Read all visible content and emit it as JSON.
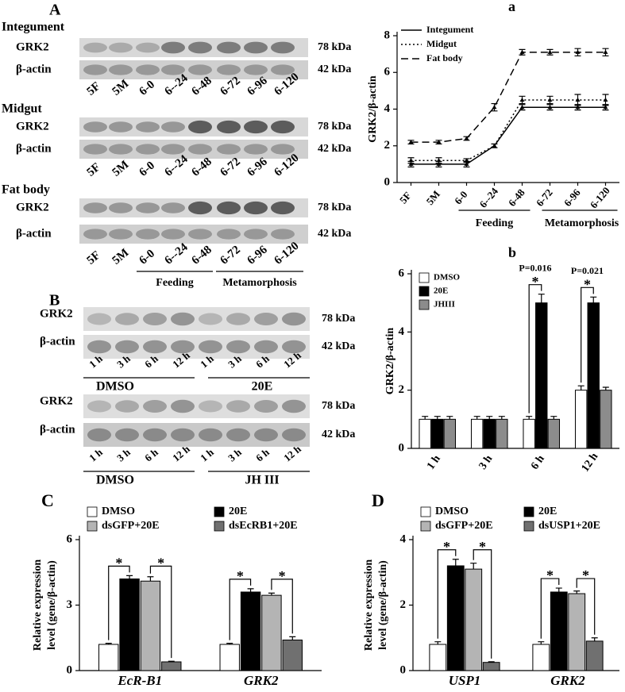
{
  "blots": {
    "A": {
      "label": "A",
      "groups": [
        {
          "tissue": "Integument",
          "rows": [
            "GRK2",
            "β-actin"
          ],
          "sizes": [
            "78 kDa",
            "42 kDa"
          ],
          "lanes": [
            "5F",
            "5M",
            "6-0",
            "6--24",
            "6-48",
            "6-72",
            "6-96",
            "6-120"
          ]
        },
        {
          "tissue": "Midgut",
          "rows": [
            "GRK2",
            "β-actin"
          ],
          "sizes": [
            "78 kDa",
            "42 kDa"
          ],
          "lanes": [
            "5F",
            "5M",
            "6-0",
            "6--24",
            "6-48",
            "6-72",
            "6-96",
            "6-120"
          ]
        },
        {
          "tissue": "Fat body",
          "rows": [
            "GRK2",
            "β-actin"
          ],
          "sizes": [
            "78 kDa",
            "42 kDa"
          ],
          "lanes": [
            "5F",
            "5M",
            "6-0",
            "6--24",
            "6-48",
            "6-72",
            "6-96",
            "6-120"
          ]
        }
      ],
      "phases": [
        "Feeding",
        "Metamorphosis"
      ]
    },
    "B": {
      "label": "B",
      "groups": [
        {
          "rows": [
            "GRK2",
            "β-actin"
          ],
          "sizes": [
            "78 kDa",
            "42 kDa"
          ],
          "lanes": [
            "1 h",
            "3 h",
            "6 h",
            "12 h",
            "1 h",
            "3 h",
            "6 h",
            "12 h"
          ],
          "treatments": [
            "DMSO",
            "20E"
          ]
        },
        {
          "rows": [
            "GRK2",
            "β-actin"
          ],
          "sizes": [
            "78 kDa",
            "42 kDa"
          ],
          "lanes": [
            "1 h",
            "3 h",
            "6 h",
            "12 h",
            "1 h",
            "3 h",
            "6 h",
            "12 h"
          ],
          "treatments": [
            "DMSO",
            "JH III"
          ]
        }
      ]
    }
  },
  "chart_data": [
    {
      "type": "line",
      "panel": "a",
      "y_label": [
        "GRK2/β-actin"
      ],
      "categories": [
        "5F",
        "5M",
        "6-0",
        "6--24",
        "6-48",
        "6-72",
        "6-96",
        "6-120"
      ],
      "groups": [
        "Feeding",
        "Metamorphosis"
      ],
      "ylim": [
        0,
        8
      ],
      "yticks": [
        0,
        2,
        4,
        6,
        8
      ],
      "series": [
        {
          "name": "Integument",
          "color": "#000000",
          "line_style": "solid",
          "values": [
            1,
            1,
            1,
            2,
            4.1,
            4.1,
            4.1,
            4.1
          ],
          "errors": [
            0.15,
            0.15,
            0.15,
            0.1,
            0.15,
            0.15,
            0.15,
            0.15
          ]
        },
        {
          "name": "Midgut",
          "color": "#000000",
          "line_style": "dotted",
          "values": [
            1.2,
            1.2,
            1.2,
            2,
            4.5,
            4.5,
            4.5,
            4.5
          ],
          "errors": [
            0.15,
            0.15,
            0.1,
            0.1,
            0.2,
            0.2,
            0.3,
            0.3
          ]
        },
        {
          "name": "Fat body",
          "color": "#000000",
          "line_style": "dashed",
          "values": [
            2.2,
            2.2,
            2.4,
            4.1,
            7.1,
            7.1,
            7.1,
            7.1
          ],
          "errors": [
            0.1,
            0.1,
            0.1,
            0.2,
            0.15,
            0.15,
            0.2,
            0.2
          ]
        }
      ]
    },
    {
      "type": "bar",
      "panel": "b",
      "y_label": [
        "GRK2/β-actin"
      ],
      "categories": [
        "1 h",
        "3 h",
        "6 h",
        "12 h"
      ],
      "ylim": [
        0,
        6
      ],
      "yticks": [
        0,
        2,
        4,
        6
      ],
      "annotations": [
        "P=0.016",
        "P=0.021"
      ],
      "significance_marks": [
        "*",
        "*"
      ],
      "series": [
        {
          "name": "DMSO",
          "color": "#ffffff",
          "values": [
            1,
            1,
            1,
            2
          ],
          "errors": [
            0.1,
            0.1,
            0.1,
            0.15
          ]
        },
        {
          "name": "20E",
          "color": "#000000",
          "values": [
            1,
            1,
            5,
            5
          ],
          "errors": [
            0.1,
            0.1,
            0.3,
            0.2
          ]
        },
        {
          "name": "JHIII",
          "color": "#8c8c8c",
          "values": [
            1,
            1,
            1,
            2
          ],
          "errors": [
            0.1,
            0.1,
            0.1,
            0.1
          ]
        }
      ]
    },
    {
      "type": "bar",
      "panel": "C",
      "y_label": [
        "Relative expression",
        "level (gene/β-actin)"
      ],
      "categories": [
        "EcR-B1",
        "GRK2"
      ],
      "ylim": [
        0,
        6
      ],
      "yticks": [
        0,
        3,
        6
      ],
      "significance_marks": [
        "*",
        "*",
        "*",
        "*"
      ],
      "series": [
        {
          "name": "DMSO",
          "color": "#ffffff",
          "values": [
            1.2,
            1.2
          ],
          "errors": [
            0.05,
            0.05
          ]
        },
        {
          "name": "20E",
          "color": "#000000",
          "values": [
            4.2,
            3.6
          ],
          "errors": [
            0.15,
            0.15
          ]
        },
        {
          "name": "dsGFP+20E",
          "color": "#b4b4b4",
          "values": [
            4.1,
            3.45
          ],
          "errors": [
            0.2,
            0.1
          ]
        },
        {
          "name": "dsEcRB1+20E",
          "color": "#707070",
          "values": [
            0.4,
            1.4
          ],
          "errors": [
            0.03,
            0.15
          ]
        }
      ]
    },
    {
      "type": "bar",
      "panel": "D",
      "y_label": [
        "Relative expression",
        "level (gene/β-actin)"
      ],
      "categories": [
        "USP1",
        "GRK2"
      ],
      "ylim": [
        0,
        4
      ],
      "yticks": [
        0,
        2,
        4
      ],
      "significance_marks": [
        "*",
        "*",
        "*",
        "*"
      ],
      "series": [
        {
          "name": "DMSO",
          "color": "#ffffff",
          "values": [
            0.8,
            0.8
          ],
          "errors": [
            0.08,
            0.08
          ]
        },
        {
          "name": "20E",
          "color": "#000000",
          "values": [
            3.2,
            2.4
          ],
          "errors": [
            0.2,
            0.12
          ]
        },
        {
          "name": "dsGFP+20E",
          "color": "#b4b4b4",
          "values": [
            3.1,
            2.35
          ],
          "errors": [
            0.18,
            0.08
          ]
        },
        {
          "name": "dsUSP1+20E",
          "color": "#707070",
          "values": [
            0.25,
            0.9
          ],
          "errors": [
            0.02,
            0.1
          ]
        }
      ]
    }
  ]
}
